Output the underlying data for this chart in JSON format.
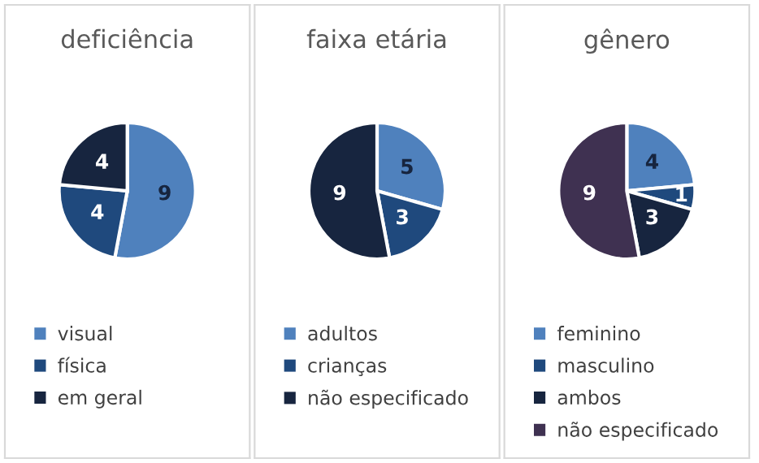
{
  "chart_data": [
    {
      "type": "pie",
      "title": "deficiência",
      "categories": [
        "visual",
        "física",
        "em geral"
      ],
      "values": [
        9,
        4,
        4
      ],
      "colors": [
        "#4f81bd",
        "#1f497d",
        "#17253f"
      ],
      "data_labels": true,
      "legend": "bottom"
    },
    {
      "type": "pie",
      "title": "faixa etária",
      "categories": [
        "adultos",
        "crianças",
        "não especificado"
      ],
      "values": [
        5,
        3,
        9
      ],
      "colors": [
        "#4f81bd",
        "#1f497d",
        "#17253f"
      ],
      "data_labels": true,
      "legend": "bottom"
    },
    {
      "type": "pie",
      "title": "gênero",
      "categories": [
        "feminino",
        "masculino",
        "ambos",
        "não especificado"
      ],
      "values": [
        4,
        1,
        3,
        9
      ],
      "colors": [
        "#4f81bd",
        "#1f497d",
        "#17253f",
        "#3f3151"
      ],
      "data_labels": true,
      "legend": "bottom"
    }
  ]
}
